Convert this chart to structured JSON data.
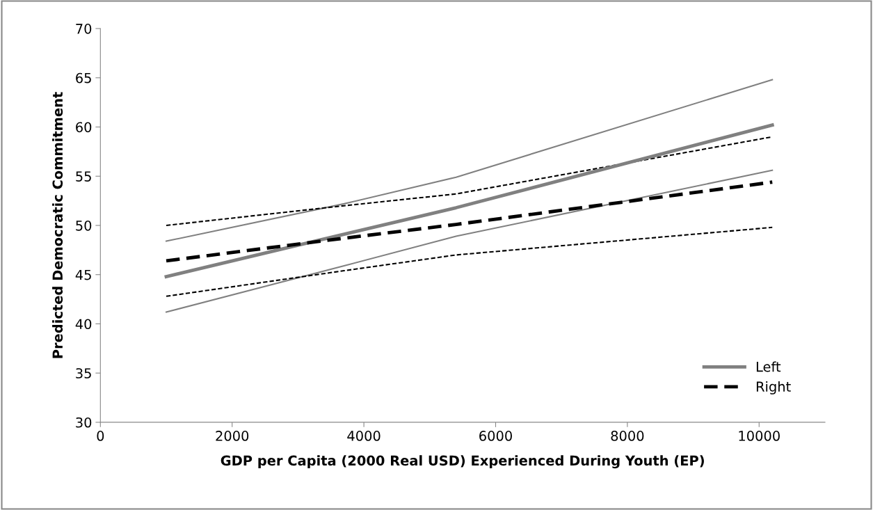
{
  "chart_data": {
    "type": "line",
    "xlabel": "GDP per Capita (2000 Real USD) Experienced During Youth (EP)",
    "ylabel": "Predicted Democratic Commitment",
    "x": [
      1000,
      3700,
      5400,
      10200
    ],
    "series": [
      {
        "color": "#808080",
        "line_style": "solid",
        "values": [
          48.4,
          52.2,
          54.9,
          64.8
        ]
      },
      {
        "color": "#808080",
        "line_style": "solid",
        "values": [
          41.2,
          45.9,
          48.9,
          55.6
        ]
      },
      {
        "color": "#000000",
        "line_style": "dotted",
        "values": [
          50.0,
          52.0,
          53.2,
          59.0
        ]
      },
      {
        "color": "#000000",
        "line_style": "dotted",
        "values": [
          42.8,
          45.4,
          47.0,
          49.8
        ]
      },
      {
        "name": "Left",
        "color": "#808080",
        "line_style": "solid",
        "values": [
          44.8,
          49.1,
          51.8,
          60.2
        ]
      },
      {
        "name": "Right",
        "color": "#000000",
        "line_style": "dashed",
        "values": [
          46.4,
          48.7,
          50.1,
          54.4
        ]
      }
    ],
    "xlim": [
      0,
      11000
    ],
    "xticks": [
      0,
      2000,
      4000,
      6000,
      8000,
      10000
    ],
    "ylim": [
      30,
      70
    ],
    "yticks": [
      30,
      35,
      40,
      45,
      50,
      55,
      60,
      65,
      70
    ],
    "grid": false,
    "legend": "bottom right",
    "marker": "none"
  }
}
